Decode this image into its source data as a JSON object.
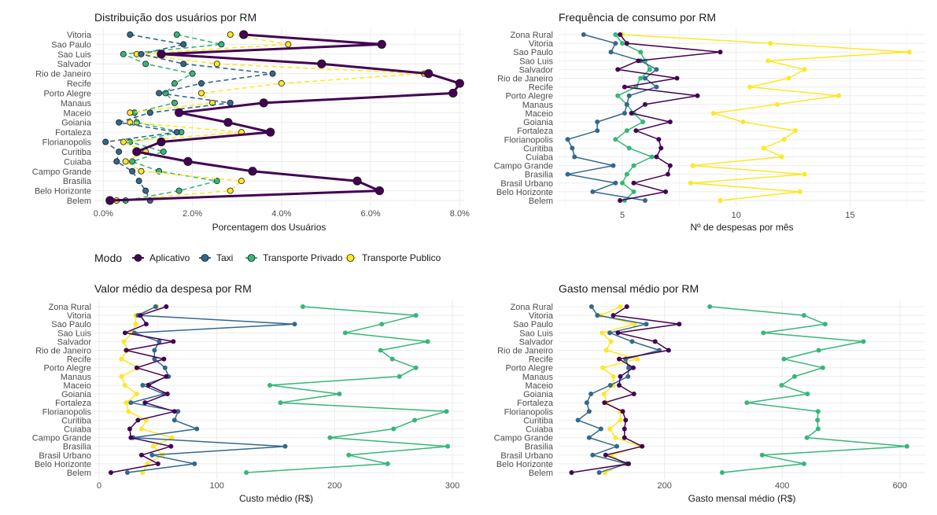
{
  "colors": {
    "Aplicativo": "#440154",
    "Taxi": "#31688e",
    "Transporte Privado": "#35b779",
    "Transporte Publico": "#fde725"
  },
  "legend": {
    "title": "Modo",
    "items": [
      "Aplicativo",
      "Taxi",
      "Transporte Privado",
      "Transporte Publico"
    ]
  },
  "chart_data": [
    {
      "type": "line",
      "title": "Distribuição dos usuários por RM",
      "xlabel": "Porcentagem dos Usuários",
      "ylabel": "",
      "xlim": [
        -0.002,
        0.081
      ],
      "xticks": [
        0,
        0.02,
        0.04,
        0.06,
        0.08
      ],
      "xtick_labels": [
        "0.0%",
        "2.0%",
        "4.0%",
        "6.0%",
        "8.0%"
      ],
      "categories": [
        "Vitoria",
        "Sao Paulo",
        "Sao Luis",
        "Salvador",
        "Rio de Janeiro",
        "Recife",
        "Porto Alegre",
        "Manaus",
        "Maceio",
        "Goiania",
        "Fortaleza",
        "Florianopolis",
        "Curitiba",
        "Cuiaba",
        "Campo Grande",
        "Brasilia",
        "Belo Horizonte",
        "Belem"
      ],
      "series": [
        {
          "name": "Aplicativo",
          "values": [
            0.0315,
            0.0625,
            0.013,
            0.049,
            0.073,
            0.08,
            0.0785,
            0.036,
            0.017,
            0.028,
            0.0375,
            0.013,
            0.0075,
            0.019,
            0.0335,
            0.057,
            0.062,
            0.0015
          ]
        },
        {
          "name": "Taxi",
          "values": [
            0.006,
            0.018,
            0.0085,
            0.018,
            0.038,
            0.022,
            0.0125,
            0.0285,
            0.0105,
            0.0035,
            0.0165,
            0.0005,
            0.0035,
            0.003,
            0.0065,
            0.008,
            0.0095,
            0.0105
          ]
        },
        {
          "name": "Transporte Privado",
          "values": [
            0.0165,
            0.0265,
            0.0045,
            0.0095,
            0.02,
            0.016,
            0.014,
            0.016,
            0.007,
            0.0075,
            0.0175,
            0.006,
            0.0135,
            0.0065,
            0.0125,
            0.0255,
            0.017,
            0.005
          ]
        },
        {
          "name": "Transporte Publico",
          "values": [
            0.0285,
            0.0415,
            0.0075,
            0.0255,
            0.072,
            0.04,
            0.022,
            0.0245,
            0.006,
            0.006,
            0.031,
            0.0045,
            0.0095,
            0.005,
            0.0085,
            0.031,
            0.0285,
            0.003
          ]
        }
      ]
    },
    {
      "type": "line",
      "title": "Frequência de consumo por RM",
      "xlabel": "Nº de despesas por mês",
      "ylabel": "",
      "xlim": [
        2.2,
        18.3
      ],
      "xticks": [
        5,
        10,
        15
      ],
      "xtick_labels": [
        "5",
        "10",
        "15"
      ],
      "categories": [
        "Zona Rural",
        "Vitoria",
        "Sao Paulo",
        "Sao Luis",
        "Salvador",
        "Rio de Janeiro",
        "Recife",
        "Porto Alegre",
        "Manaus",
        "Maceio",
        "Goiania",
        "Fortaleza",
        "Florianopolis",
        "Curitiba",
        "Cuiaba",
        "Campo Grande",
        "Brasilia",
        "Brasil Urbano",
        "Belo Horizonte",
        "Belem"
      ],
      "series": [
        {
          "name": "Aplicativo",
          "values": [
            4.9,
            5.2,
            9.3,
            5.7,
            4.8,
            7.4,
            5.1,
            8.3,
            6.0,
            5.4,
            7.1,
            5.6,
            6.6,
            6.7,
            6.5,
            7.1,
            7.0,
            5.5,
            6.9,
            4.9
          ]
        },
        {
          "name": "Taxi",
          "values": [
            3.3,
            4.7,
            4.5,
            5.8,
            6.5,
            6.0,
            6.5,
            5.3,
            5.2,
            5.1,
            3.9,
            3.9,
            2.6,
            2.8,
            2.9,
            4.6,
            2.6,
            4.7,
            3.7,
            6.0
          ]
        },
        {
          "name": "Transporte Privado",
          "values": [
            4.7,
            5.0,
            5.8,
            6.0,
            6.2,
            5.8,
            5.6,
            4.8,
            5.2,
            5.5,
            5.9,
            5.2,
            4.7,
            5.3,
            6.3,
            5.5,
            5.2,
            5.0,
            5.5,
            5.1
          ]
        },
        {
          "name": "Transporte Publico",
          "values": [
            5.0,
            11.5,
            17.6,
            11.4,
            13.0,
            12.3,
            10.6,
            14.5,
            11.8,
            9.0,
            10.3,
            12.6,
            12.1,
            11.2,
            12.0,
            8.1,
            13.0,
            8.0,
            12.8,
            9.3
          ]
        }
      ]
    },
    {
      "type": "line",
      "title": "Valor médio da despesa por RM",
      "xlabel": "Custo médio (R$)",
      "ylabel": "",
      "xlim": [
        -4,
        310
      ],
      "xticks": [
        0,
        100,
        200,
        300
      ],
      "xtick_labels": [
        "0",
        "100",
        "200",
        "300"
      ],
      "categories": [
        "Zona Rural",
        "Vitoria",
        "Sao Paulo",
        "Sao Luis",
        "Salvador",
        "Rio de Janeiro",
        "Recife",
        "Porto Alegre",
        "Manaus",
        "Maceio",
        "Goiania",
        "Fortaleza",
        "Florianopolis",
        "Curitiba",
        "Cuiaba",
        "Campo Grande",
        "Brasilia",
        "Brasil Urbano",
        "Belo Horizonte",
        "Belem"
      ],
      "series": [
        {
          "name": "Aplicativo",
          "values": [
            57,
            35,
            40,
            22,
            63,
            23,
            55,
            32,
            57,
            42,
            58,
            39,
            64,
            33,
            26,
            27,
            61,
            36,
            50,
            10
          ]
        },
        {
          "name": "Taxi",
          "values": [
            48,
            33,
            166,
            30,
            51,
            47,
            47,
            56,
            59,
            37,
            55,
            27,
            67,
            64,
            83,
            29,
            158,
            45,
            81,
            24
          ]
        },
        {
          "name": "Transporte Privado",
          "values": [
            173,
            269,
            240,
            209,
            279,
            239,
            249,
            269,
            255,
            145,
            204,
            154,
            295,
            268,
            250,
            196,
            296,
            212,
            245,
            125
          ]
        },
        {
          "name": "Transporte Publico",
          "values": [
            49,
            31,
            31,
            28,
            21,
            24,
            19,
            33,
            19,
            22,
            32,
            23,
            25,
            40,
            36,
            62,
            46,
            54,
            41,
            37
          ]
        }
      ]
    },
    {
      "type": "line",
      "title": "Gasto mensal médio por RM",
      "xlabel": "Gasto mensal médio (R$)",
      "ylabel": "",
      "xlim": [
        20,
        643
      ],
      "xticks": [
        200,
        400,
        600
      ],
      "xtick_labels": [
        "200",
        "400",
        "600"
      ],
      "categories": [
        "Zona Rural",
        "Vitoria",
        "Sao Paulo",
        "Sao Luis",
        "Salvador",
        "Rio de Janeiro",
        "Recife",
        "Porto Alegre",
        "Manaus",
        "Maceio",
        "Goiania",
        "Fortaleza",
        "Florianopolis",
        "Curitiba",
        "Cuiaba",
        "Campo Grande",
        "Brasilia",
        "Brasil Urbano",
        "Belo Horizonte",
        "Belem"
      ],
      "series": [
        {
          "name": "Aplicativo",
          "values": [
            136,
            113,
            225,
            121,
            184,
            207,
            123,
            147,
            125,
            123,
            148,
            98,
            129,
            134,
            132,
            132,
            162,
            100,
            139,
            42
          ]
        },
        {
          "name": "Taxi",
          "values": [
            76,
            86,
            169,
            107,
            145,
            191,
            134,
            139,
            138,
            108,
            75,
            68,
            72,
            53,
            92,
            72,
            119,
            78,
            136,
            89
          ]
        },
        {
          "name": "Transporte Privado",
          "values": [
            277,
            437,
            473,
            368,
            538,
            462,
            403,
            469,
            421,
            399,
            443,
            340,
            461,
            460,
            461,
            442,
            612,
            366,
            437,
            298
          ]
        },
        {
          "name": "Transporte Publico",
          "values": [
            125,
            92,
            149,
            94,
            109,
            101,
            154,
            95,
            113,
            113,
            97,
            102,
            125,
            125,
            107,
            117,
            159,
            110,
            131,
            99
          ]
        }
      ]
    }
  ]
}
